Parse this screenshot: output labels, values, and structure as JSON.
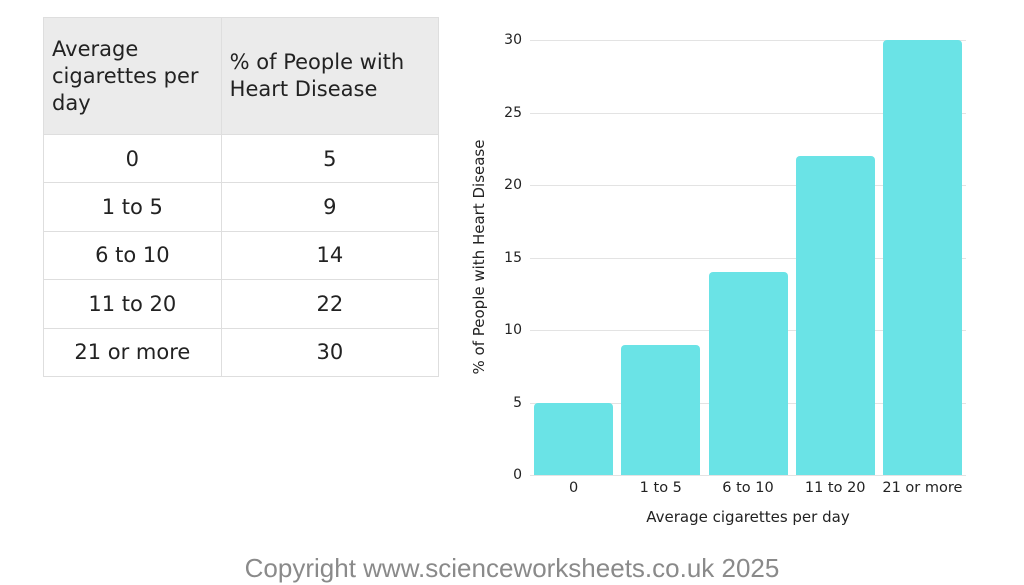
{
  "table": {
    "headers": [
      "Average cigarettes per day",
      "% of People with Heart Disease"
    ],
    "rows": [
      [
        "0",
        "5"
      ],
      [
        "1 to 5",
        "9"
      ],
      [
        "6 to 10",
        "14"
      ],
      [
        "11 to 20",
        "22"
      ],
      [
        "21 or more",
        "30"
      ]
    ]
  },
  "chart_data": {
    "type": "bar",
    "title": "",
    "categories": [
      "0",
      "1 to 5",
      "6 to 10",
      "11 to 20",
      "21 or more"
    ],
    "values": [
      5,
      9,
      14,
      22,
      30
    ],
    "xlabel": "Average cigarettes per day",
    "ylabel": "% of People with Heart Disease",
    "ylim": [
      0,
      30
    ],
    "yticks": [
      0,
      5,
      10,
      15,
      20,
      25,
      30
    ],
    "grid": true,
    "legend": null,
    "bar_color": "#6ae3e6"
  },
  "footer": {
    "copyright": "Copyright www.scienceworksheets.co.uk 2025"
  },
  "colors": {
    "bar": "#6ae3e6",
    "header_bg": "#ebebeb",
    "grid": "#e3e3e3",
    "copyright_text": "#8a8a8a"
  }
}
